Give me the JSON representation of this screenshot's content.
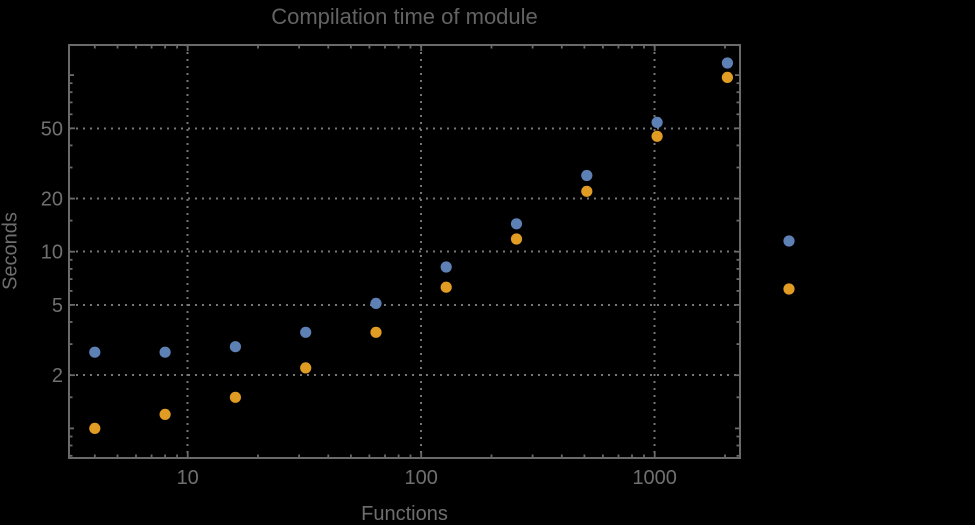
{
  "chart": {
    "title": "Compilation time of module",
    "xlabel": "Functions",
    "ylabel": "Seconds"
  },
  "chart_data": {
    "type": "scatter",
    "title": "Compilation time of module",
    "xlabel": "Functions",
    "ylabel": "Seconds",
    "x_scale": "log",
    "y_scale": "log",
    "x": [
      4,
      8,
      16,
      32,
      64,
      128,
      256,
      512,
      1024,
      2048
    ],
    "series": [
      {
        "name": "series-1-blue",
        "color": "#5E81B5",
        "values": [
          2.7,
          2.7,
          2.9,
          3.5,
          5.1,
          8.2,
          14.4,
          27,
          54,
          117
        ]
      },
      {
        "name": "series-2-orange",
        "color": "#E19C24",
        "values": [
          1.0,
          1.2,
          1.5,
          2.2,
          3.5,
          6.3,
          11.8,
          22,
          45,
          97
        ]
      }
    ],
    "x_tick_values": [
      10,
      100,
      1000
    ],
    "x_tick_labels": [
      "10",
      "100",
      "1000"
    ],
    "y_tick_values": [
      2,
      5,
      10,
      20,
      50
    ],
    "y_tick_labels": [
      "2",
      "5",
      "10",
      "20",
      "50"
    ],
    "y_unlabeled_major_ticks": [
      1,
      100
    ],
    "xlim": [
      3.1,
      2320
    ],
    "ylim": [
      0.68,
      148
    ],
    "grid": "dotted gray lines at labeled tick positions, frame on all four sides",
    "legend_markers": [
      {
        "color": "#5E81B5"
      },
      {
        "color": "#E19C24"
      }
    ],
    "legend_position": "right of plot frame, markers only (no visible text)"
  },
  "colors": {
    "background": "#000000",
    "frame": "#6a6a6a",
    "grid": "#767676",
    "tick_text": "#707070",
    "title_text": "#636363",
    "axis_label_text": "#6e6e6e",
    "series1": "#5E81B5",
    "series2": "#E19C24"
  }
}
